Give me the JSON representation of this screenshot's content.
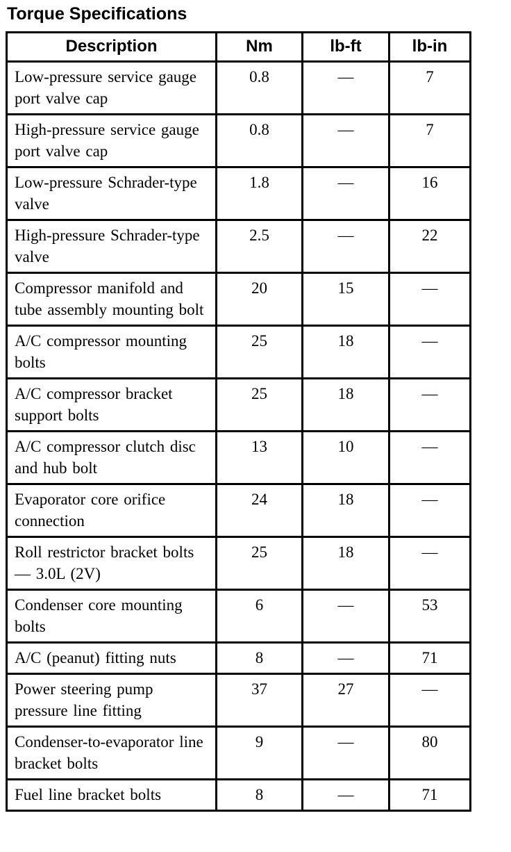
{
  "title": "Torque Specifications",
  "table": {
    "columns": [
      "Description",
      "Nm",
      "lb-ft",
      "lb-in"
    ],
    "rows": [
      {
        "description": "Low-pressure service gauge port valve cap",
        "nm": "0.8",
        "lb_ft": "—",
        "lb_in": "7"
      },
      {
        "description": "High-pressure service gauge port valve cap",
        "nm": "0.8",
        "lb_ft": "—",
        "lb_in": "7"
      },
      {
        "description": "Low-pressure Schrader-type valve",
        "nm": "1.8",
        "lb_ft": "—",
        "lb_in": "16"
      },
      {
        "description": "High-pressure Schrader-type valve",
        "nm": "2.5",
        "lb_ft": "—",
        "lb_in": "22"
      },
      {
        "description": "Compressor manifold and tube assembly mounting bolt",
        "nm": "20",
        "lb_ft": "15",
        "lb_in": "—"
      },
      {
        "description": "A/C compressor mounting bolts",
        "nm": "25",
        "lb_ft": "18",
        "lb_in": "—"
      },
      {
        "description": "A/C compressor bracket support bolts",
        "nm": "25",
        "lb_ft": "18",
        "lb_in": "—"
      },
      {
        "description": "A/C compressor clutch disc and hub bolt",
        "nm": "13",
        "lb_ft": "10",
        "lb_in": "—"
      },
      {
        "description": "Evaporator core orifice connection",
        "nm": "24",
        "lb_ft": "18",
        "lb_in": "—"
      },
      {
        "description": "Roll restrictor bracket bolts — 3.0L (2V)",
        "nm": "25",
        "lb_ft": "18",
        "lb_in": "—"
      },
      {
        "description": "Condenser core mounting bolts",
        "nm": "6",
        "lb_ft": "—",
        "lb_in": "53"
      },
      {
        "description": "A/C (peanut) fitting nuts",
        "nm": "8",
        "lb_ft": "—",
        "lb_in": "71"
      },
      {
        "description": "Power steering pump pressure line fitting",
        "nm": "37",
        "lb_ft": "27",
        "lb_in": "—"
      },
      {
        "description": "Condenser-to-evaporator line bracket bolts",
        "nm": "9",
        "lb_ft": "—",
        "lb_in": "80"
      },
      {
        "description": "Fuel line bracket bolts",
        "nm": "8",
        "lb_ft": "—",
        "lb_in": "71"
      }
    ]
  }
}
